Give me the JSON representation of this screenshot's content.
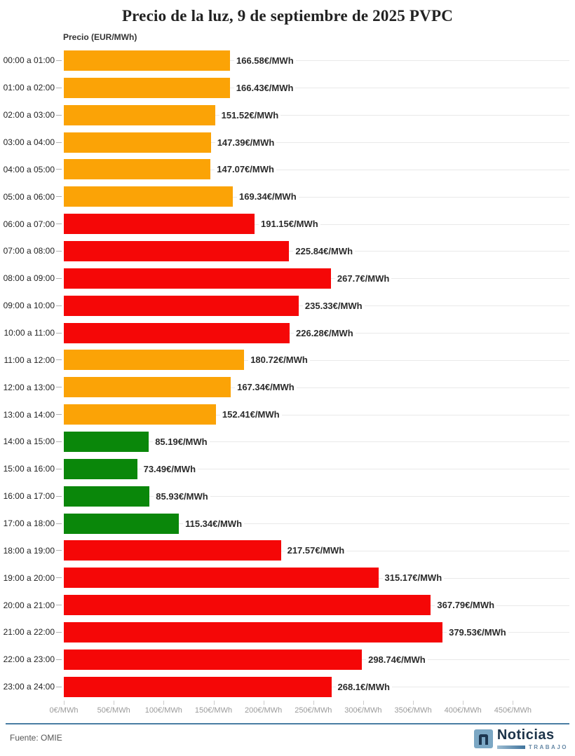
{
  "page": {
    "title": "Precio de la luz, 9 de septiembre de 2025 PVPC"
  },
  "chart_data": {
    "type": "bar",
    "orientation": "horizontal",
    "title": "Precio de la luz, 9 de septiembre de 2025 PVPC",
    "axis_title": "Precio (EUR/MWh)",
    "unit_suffix": "€/MWh",
    "xlim": [
      0,
      505
    ],
    "grid": true,
    "legend": "none",
    "colors": {
      "orange": "#fba306",
      "red": "#f50707",
      "green": "#0a870a"
    },
    "x_ticks": [
      {
        "value": 0,
        "label": "0€/MWh"
      },
      {
        "value": 50,
        "label": "50€/MWh"
      },
      {
        "value": 100,
        "label": "100€/MWh"
      },
      {
        "value": 150,
        "label": "150€/MWh"
      },
      {
        "value": 200,
        "label": "200€/MWh"
      },
      {
        "value": 250,
        "label": "250€/MWh"
      },
      {
        "value": 300,
        "label": "300€/MWh"
      },
      {
        "value": 350,
        "label": "350€/MWh"
      },
      {
        "value": 400,
        "label": "400€/MWh"
      },
      {
        "value": 450,
        "label": "450€/MWh"
      }
    ],
    "rows": [
      {
        "hour": "00:00 a 01:00",
        "value": 166.58,
        "label": "166.58€/MWh",
        "color": "orange"
      },
      {
        "hour": "01:00 a 02:00",
        "value": 166.43,
        "label": "166.43€/MWh",
        "color": "orange"
      },
      {
        "hour": "02:00 a 03:00",
        "value": 151.52,
        "label": "151.52€/MWh",
        "color": "orange"
      },
      {
        "hour": "03:00 a 04:00",
        "value": 147.39,
        "label": "147.39€/MWh",
        "color": "orange"
      },
      {
        "hour": "04:00 a 05:00",
        "value": 147.07,
        "label": "147.07€/MWh",
        "color": "orange"
      },
      {
        "hour": "05:00 a 06:00",
        "value": 169.34,
        "label": "169.34€/MWh",
        "color": "orange"
      },
      {
        "hour": "06:00 a 07:00",
        "value": 191.15,
        "label": "191.15€/MWh",
        "color": "red"
      },
      {
        "hour": "07:00 a 08:00",
        "value": 225.84,
        "label": "225.84€/MWh",
        "color": "red"
      },
      {
        "hour": "08:00 a 09:00",
        "value": 267.7,
        "label": "267.7€/MWh",
        "color": "red"
      },
      {
        "hour": "09:00 a 10:00",
        "value": 235.33,
        "label": "235.33€/MWh",
        "color": "red"
      },
      {
        "hour": "10:00 a 11:00",
        "value": 226.28,
        "label": "226.28€/MWh",
        "color": "red"
      },
      {
        "hour": "11:00 a 12:00",
        "value": 180.72,
        "label": "180.72€/MWh",
        "color": "orange"
      },
      {
        "hour": "12:00 a 13:00",
        "value": 167.34,
        "label": "167.34€/MWh",
        "color": "orange"
      },
      {
        "hour": "13:00 a 14:00",
        "value": 152.41,
        "label": "152.41€/MWh",
        "color": "orange"
      },
      {
        "hour": "14:00 a 15:00",
        "value": 85.19,
        "label": "85.19€/MWh",
        "color": "green"
      },
      {
        "hour": "15:00 a 16:00",
        "value": 73.49,
        "label": "73.49€/MWh",
        "color": "green"
      },
      {
        "hour": "16:00 a 17:00",
        "value": 85.93,
        "label": "85.93€/MWh",
        "color": "green"
      },
      {
        "hour": "17:00 a 18:00",
        "value": 115.34,
        "label": "115.34€/MWh",
        "color": "green"
      },
      {
        "hour": "18:00 a 19:00",
        "value": 217.57,
        "label": "217.57€/MWh",
        "color": "red"
      },
      {
        "hour": "19:00 a 20:00",
        "value": 315.17,
        "label": "315.17€/MWh",
        "color": "red"
      },
      {
        "hour": "20:00 a 21:00",
        "value": 367.79,
        "label": "367.79€/MWh",
        "color": "red"
      },
      {
        "hour": "21:00 a 22:00",
        "value": 379.53,
        "label": "379.53€/MWh",
        "color": "red"
      },
      {
        "hour": "22:00 a 23:00",
        "value": 298.74,
        "label": "298.74€/MWh",
        "color": "red"
      },
      {
        "hour": "23:00 a 24:00",
        "value": 268.1,
        "label": "268.1€/MWh",
        "color": "red"
      }
    ]
  },
  "footer": {
    "source": "Fuente: OMIE",
    "divider_color": "#4a7da3",
    "logo": {
      "name": "Noticias",
      "sub": "TRABAJO",
      "mark_bg": "#7ba7c4",
      "mark_arch": "#1d3650",
      "name_color": "#1c3349",
      "sub_color": "#6688a6",
      "sub_bar_color": "#3f739c"
    }
  }
}
